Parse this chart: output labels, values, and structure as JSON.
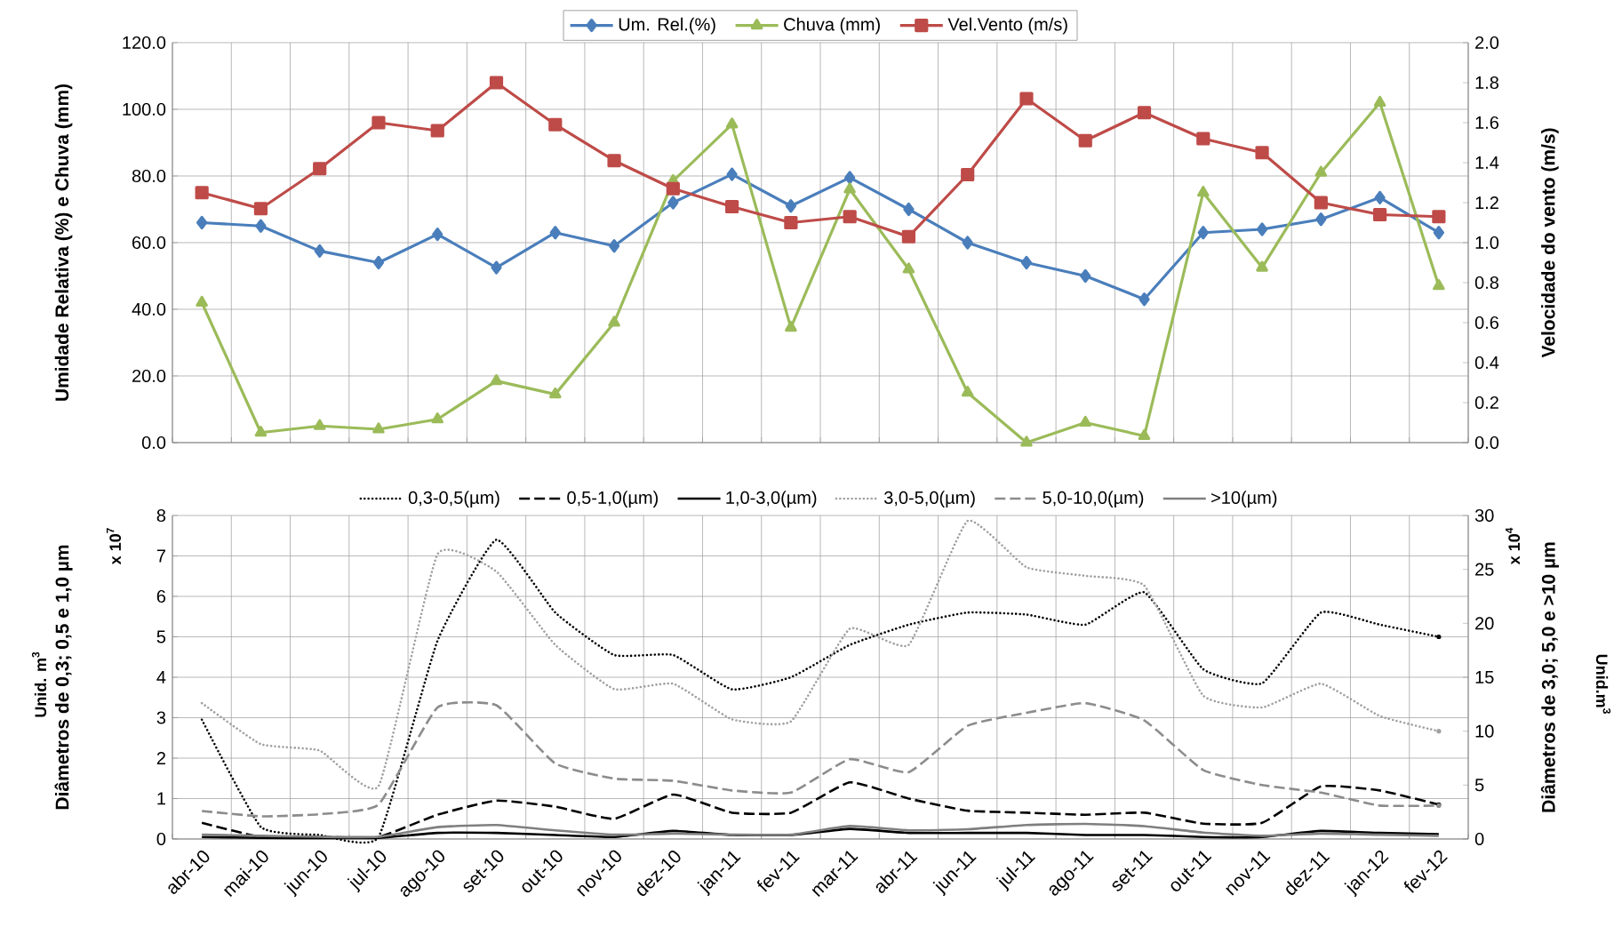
{
  "chart_data": [
    {
      "type": "line",
      "ylabel": "Umidade Relativa (%)  e Chuva (mm)",
      "y2label": "Velocidade do vento (m/s)",
      "categories": [
        null,
        null,
        null,
        null,
        null,
        null,
        null,
        null,
        null,
        null,
        null,
        null,
        null,
        null,
        null,
        null,
        null,
        null,
        null,
        null,
        null,
        null
      ],
      "series": [
        {
          "name": "Um. Rel.(%)",
          "color": "#4a7ebb",
          "marker": "diamond",
          "values": [
            66,
            65,
            57.5,
            54,
            62.5,
            52.5,
            63,
            59,
            72,
            80.5,
            71,
            79.5,
            70,
            60,
            54,
            50,
            43,
            63,
            64,
            67,
            73.5,
            63
          ]
        },
        {
          "name": "Chuva (mm)",
          "color": "#9bbb59",
          "marker": "triangle",
          "values": [
            42,
            3,
            5,
            4,
            7,
            18.5,
            14.5,
            36,
            78.5,
            95.5,
            34.5,
            76,
            52,
            15,
            0,
            6,
            2,
            75,
            52.5,
            81,
            102,
            47
          ]
        },
        {
          "name": "Vel.Vento (m/s)",
          "color": "#be4b48",
          "marker": "square",
          "axis": "y2",
          "values": [
            1.25,
            1.17,
            1.37,
            1.6,
            1.56,
            1.8,
            1.59,
            1.41,
            1.27,
            1.18,
            1.1,
            1.13,
            1.03,
            1.34,
            1.72,
            1.51,
            1.65,
            1.52,
            1.45,
            1.2,
            1.14,
            1.13
          ]
        }
      ],
      "ylim": [
        0,
        120
      ],
      "yticks": [
        {
          "value": 0,
          "label": "0.0"
        },
        {
          "value": 20,
          "label": "20.0"
        },
        {
          "value": 40,
          "label": "40.0"
        },
        {
          "value": 60,
          "label": "60.0"
        },
        {
          "value": 80,
          "label": "80.0"
        },
        {
          "value": 100,
          "label": "100.0"
        },
        {
          "value": 120,
          "label": "120.0"
        }
      ],
      "y2lim": [
        0,
        2
      ],
      "y2ticks": [
        {
          "value": 0,
          "label": "0.0"
        },
        {
          "value": 0.2,
          "label": "0.2"
        },
        {
          "value": 0.4,
          "label": "0.4"
        },
        {
          "value": 0.6,
          "label": "0.6"
        },
        {
          "value": 0.8,
          "label": "0.8"
        },
        {
          "value": 1,
          "label": "1.0"
        },
        {
          "value": 1.2,
          "label": "1.2"
        },
        {
          "value": 1.4,
          "label": "1.4"
        },
        {
          "value": 1.6,
          "label": "1.6"
        },
        {
          "value": 1.8,
          "label": "1.8"
        },
        {
          "value": 2,
          "label": "2.0"
        }
      ],
      "grid": true,
      "legend": "top",
      "tick_labels": "y",
      "line_style": "solid"
    },
    {
      "type": "line",
      "ylabel": "Diâmetros de 0,3; 0,5 e 1,0 µm",
      "y2label": "Diâmetros de 3,0; 5,0 e >10 µm",
      "annotations": [
        "Unid. m$^{3}$",
        "x 10$^{7}$",
        "x 10$^{4}$",
        "Unid.m$^{3}$"
      ],
      "categories": [
        "abr-10",
        "mai-10",
        "jun-10",
        "jul-10",
        "ago-10",
        "set-10",
        "out-10",
        "nov-10",
        "dez-10",
        "jan-11",
        "fev-11",
        "mar-11",
        "abr-11",
        "jun-11",
        "jul-11",
        "ago-11",
        "set-11",
        "out-11",
        "nov-11",
        "dez-11",
        "jan-12",
        "fev-12"
      ],
      "series": [
        {
          "name": "0,3-0,5(µm)",
          "color": "#000000",
          "line_style": "dotted",
          "values": [
            2.95,
            0.3,
            0.1,
            0.05,
            4.9,
            7.4,
            5.6,
            4.55,
            4.55,
            3.7,
            4.0,
            4.8,
            5.3,
            5.6,
            5.55,
            5.3,
            6.1,
            4.2,
            3.85,
            5.6,
            5.3,
            5.0
          ]
        },
        {
          "name": "0,5-1,0(µm)",
          "color": "#000000",
          "line_style": "dashed",
          "values": [
            0.4,
            0.05,
            0.05,
            0.05,
            0.6,
            0.95,
            0.8,
            0.5,
            1.1,
            0.65,
            0.65,
            1.4,
            1.0,
            0.7,
            0.65,
            0.6,
            0.65,
            0.38,
            0.4,
            1.3,
            1.2,
            0.85
          ]
        },
        {
          "name": "1,0-3,0(µm)",
          "color": "#000000",
          "line_style": "solid",
          "values": [
            0.05,
            0.03,
            0.02,
            0.03,
            0.15,
            0.15,
            0.1,
            0.05,
            0.2,
            0.1,
            0.1,
            0.25,
            0.15,
            0.15,
            0.15,
            0.1,
            0.1,
            0.05,
            0.05,
            0.2,
            0.15,
            0.12
          ]
        },
        {
          "name": "3,0-5,0(µm)",
          "color": "#a0a0a0",
          "line_style": "dotted",
          "axis": "y2",
          "values": [
            12.6,
            8.8,
            8.2,
            4.9,
            26.4,
            24.8,
            18,
            13.9,
            14.4,
            11.1,
            10.9,
            19.5,
            18,
            29.5,
            25.2,
            24.4,
            23.5,
            13.3,
            12.2,
            14.4,
            11.4,
            10
          ]
        },
        {
          "name": "5,0-10,0(µm)",
          "color": "#8c8c8c",
          "line_style": "dashed",
          "axis": "y2",
          "values": [
            2.6,
            2.1,
            2.3,
            3.2,
            12.2,
            12.4,
            7,
            5.6,
            5.4,
            4.5,
            4.3,
            7.4,
            6.2,
            10.5,
            11.7,
            12.6,
            11,
            6.4,
            5,
            4.3,
            3.1,
            3.1
          ]
        },
        {
          "name": ">10(µm)",
          "color": "#7f7f7f",
          "line_style": "solid",
          "axis": "y2",
          "values": [
            0.4,
            0.3,
            0.2,
            0.2,
            1.1,
            1.3,
            0.8,
            0.4,
            0.5,
            0.4,
            0.4,
            1.2,
            0.8,
            0.9,
            1.3,
            1.4,
            1.2,
            0.6,
            0.3,
            0.5,
            0.4,
            0.3
          ]
        }
      ],
      "ylim": [
        0,
        8
      ],
      "yticks": [
        0,
        1,
        2,
        3,
        4,
        5,
        6,
        7,
        8
      ],
      "y2lim": [
        0,
        30
      ],
      "y2ticks": [
        0,
        5,
        10,
        15,
        20,
        25,
        30
      ],
      "grid": true,
      "legend": "top",
      "marker": "none"
    }
  ]
}
